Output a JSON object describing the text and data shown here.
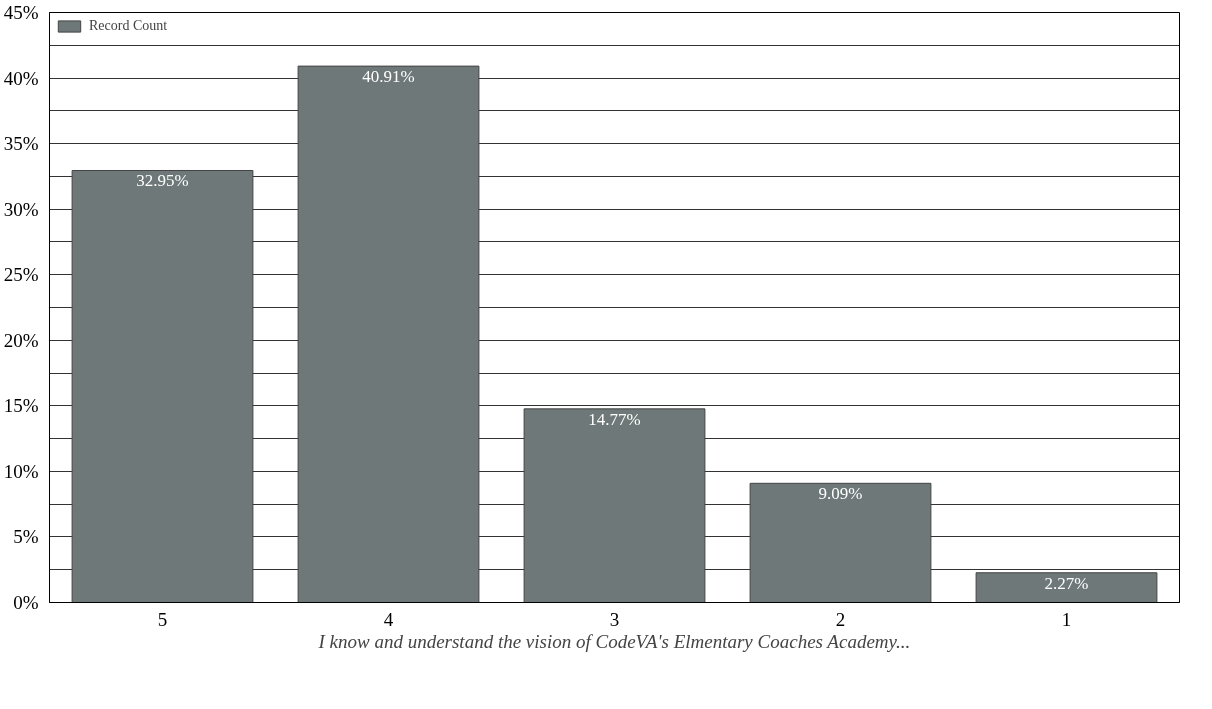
{
  "chart_data": {
    "type": "bar",
    "xlabel": "I know and understand the vision of CodeVA's Elmentary Coaches Academy...",
    "categories": [
      "5",
      "4",
      "3",
      "2",
      "1"
    ],
    "series": [
      {
        "name": "Record Count",
        "color": "#6e7878",
        "values": [
          32.95,
          40.91,
          14.77,
          9.09,
          2.27
        ]
      }
    ],
    "value_labels": [
      "32.95%",
      "40.91%",
      "14.77%",
      "9.09%",
      "2.27%"
    ],
    "ylim": [
      0,
      45
    ],
    "yticks": [
      {
        "value": 0,
        "label": "0%"
      },
      {
        "value": 2.5,
        "label": null
      },
      {
        "value": 5,
        "label": "5%"
      },
      {
        "value": 7.5,
        "label": null
      },
      {
        "value": 10,
        "label": "10%"
      },
      {
        "value": 12.5,
        "label": null
      },
      {
        "value": 15,
        "label": "15%"
      },
      {
        "value": 17.5,
        "label": null
      },
      {
        "value": 20,
        "label": "20%"
      },
      {
        "value": 22.5,
        "label": null
      },
      {
        "value": 25,
        "label": "25%"
      },
      {
        "value": 27.5,
        "label": null
      },
      {
        "value": 30,
        "label": "30%"
      },
      {
        "value": 32.5,
        "label": null
      },
      {
        "value": 35,
        "label": "35%"
      },
      {
        "value": 37.5,
        "label": null
      },
      {
        "value": 40,
        "label": "40%"
      },
      {
        "value": 42.5,
        "label": null
      },
      {
        "value": 45,
        "label": "45%"
      }
    ],
    "grid": "y",
    "legend": "top left"
  }
}
